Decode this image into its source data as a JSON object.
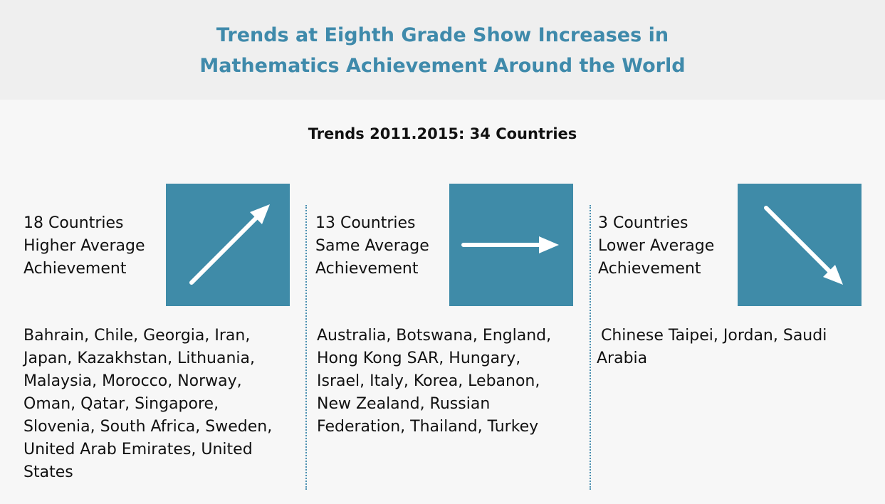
{
  "header": {
    "title_lines": [
      "Trends at Eighth Grade Show Increases in",
      "Mathematics Achievement Around the World"
    ]
  },
  "subtitle": "Trends 2011.2015: 34 Countries",
  "columns": [
    {
      "heading_lines": [
        "18 Countries",
        "Higher Average",
        "Achievement"
      ],
      "countries": "Bahrain, Chile, Georgia, Iran, Japan, Kazakhstan, Lithuania, Malaysia, Morocco, Norway, Oman, Qatar, Singapore, Slovenia, South Africa, Sweden, United Arab Emirates, United States"
    },
    {
      "heading_lines": [
        "13 Countries",
        "Same Average",
        "Achievement"
      ],
      "countries": "Australia, Botswana, England, Hong Kong SAR, Hungary, Israel, Italy, Korea, Lebanon, New Zealand, Russian Federation, Thailand, Turkey"
    },
    {
      "heading_lines": [
        "3 Countries",
        "Lower Average",
        "Achievement"
      ],
      "countries": "Chinese Taipei, Jordan, Saudi Arabia"
    }
  ]
}
